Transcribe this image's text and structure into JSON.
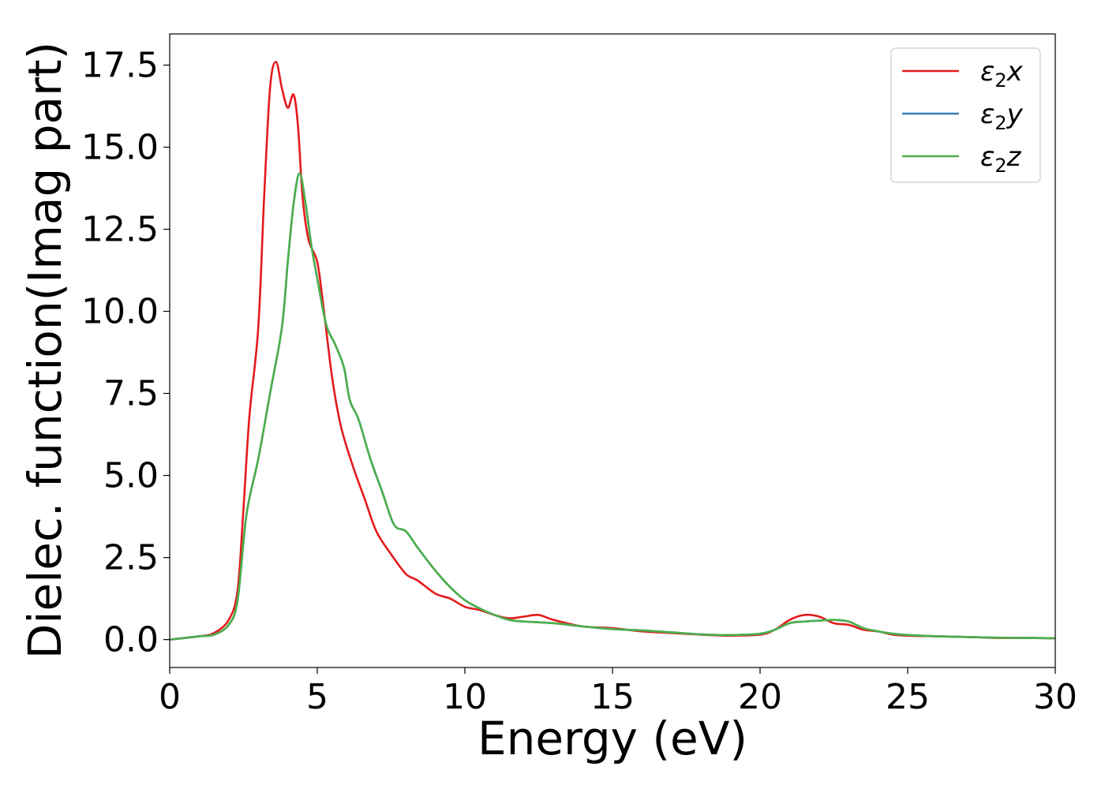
{
  "chart_data": {
    "type": "line",
    "title": "",
    "xlabel": "Energy (eV)",
    "ylabel": "Dielec. function(Imag part)",
    "xlim": [
      0,
      30
    ],
    "ylim": [
      -0.85,
      18.45
    ],
    "xticks": [
      0,
      5,
      10,
      15,
      20,
      25,
      30
    ],
    "xtick_labels": [
      "0",
      "5",
      "10",
      "15",
      "20",
      "25",
      "30"
    ],
    "yticks": [
      0,
      2.5,
      5,
      7.5,
      10,
      12.5,
      15,
      17.5
    ],
    "ytick_labels": [
      "0.0",
      "2.5",
      "5.0",
      "7.5",
      "10.0",
      "12.5",
      "15.0",
      "17.5"
    ],
    "grid": false,
    "legend_position": "top-right",
    "series": [
      {
        "name": "ε₂x",
        "legend_label": {
          "base": "ε",
          "sub": "2",
          "tail": "x"
        },
        "color": "#e41a1c",
        "points": [
          [
            0,
            0
          ],
          [
            1,
            0.1
          ],
          [
            1.5,
            0.2
          ],
          [
            2,
            0.6
          ],
          [
            2.3,
            1.5
          ],
          [
            2.5,
            4.0
          ],
          [
            2.7,
            6.8
          ],
          [
            3.0,
            9.5
          ],
          [
            3.2,
            13.5
          ],
          [
            3.4,
            16.8
          ],
          [
            3.6,
            17.6
          ],
          [
            3.8,
            16.8
          ],
          [
            4.0,
            16.2
          ],
          [
            4.2,
            16.6
          ],
          [
            4.35,
            15.6
          ],
          [
            4.5,
            13.5
          ],
          [
            4.7,
            12.2
          ],
          [
            5.0,
            11.5
          ],
          [
            5.2,
            10.2
          ],
          [
            5.5,
            8.0
          ],
          [
            5.8,
            6.5
          ],
          [
            6.2,
            5.3
          ],
          [
            6.6,
            4.3
          ],
          [
            7.0,
            3.3
          ],
          [
            7.5,
            2.6
          ],
          [
            8.0,
            2.0
          ],
          [
            8.4,
            1.8
          ],
          [
            9.0,
            1.4
          ],
          [
            9.5,
            1.25
          ],
          [
            10.0,
            1.0
          ],
          [
            10.5,
            0.9
          ],
          [
            11.0,
            0.75
          ],
          [
            11.5,
            0.65
          ],
          [
            12.0,
            0.7
          ],
          [
            12.5,
            0.75
          ],
          [
            13.0,
            0.6
          ],
          [
            14.0,
            0.4
          ],
          [
            15.0,
            0.35
          ],
          [
            16.0,
            0.25
          ],
          [
            17.0,
            0.2
          ],
          [
            18.0,
            0.15
          ],
          [
            19.0,
            0.12
          ],
          [
            20.0,
            0.15
          ],
          [
            20.5,
            0.3
          ],
          [
            21.0,
            0.6
          ],
          [
            21.5,
            0.75
          ],
          [
            22.0,
            0.7
          ],
          [
            22.5,
            0.5
          ],
          [
            23.0,
            0.45
          ],
          [
            23.5,
            0.3
          ],
          [
            24.0,
            0.25
          ],
          [
            24.5,
            0.15
          ],
          [
            25.0,
            0.12
          ],
          [
            26.0,
            0.1
          ],
          [
            27.0,
            0.08
          ],
          [
            28.0,
            0.05
          ],
          [
            29.0,
            0.05
          ],
          [
            30.0,
            0.04
          ]
        ]
      },
      {
        "name": "ε₂y",
        "legend_label": {
          "base": "ε",
          "sub": "2",
          "tail": "y"
        },
        "color": "#377eb8",
        "points": [
          [
            0,
            0
          ],
          [
            1,
            0.1
          ],
          [
            1.5,
            0.15
          ],
          [
            2,
            0.45
          ],
          [
            2.3,
            1.2
          ],
          [
            2.6,
            3.8
          ],
          [
            3.0,
            5.5
          ],
          [
            3.4,
            7.5
          ],
          [
            3.8,
            9.5
          ],
          [
            4.0,
            11.5
          ],
          [
            4.2,
            13.3
          ],
          [
            4.4,
            14.2
          ],
          [
            4.6,
            13.3
          ],
          [
            4.8,
            12.0
          ],
          [
            5.0,
            11.0
          ],
          [
            5.3,
            9.6
          ],
          [
            5.6,
            9.0
          ],
          [
            5.9,
            8.3
          ],
          [
            6.1,
            7.3
          ],
          [
            6.4,
            6.7
          ],
          [
            6.8,
            5.5
          ],
          [
            7.2,
            4.5
          ],
          [
            7.6,
            3.5
          ],
          [
            8.0,
            3.3
          ],
          [
            8.4,
            2.8
          ],
          [
            9.0,
            2.1
          ],
          [
            9.5,
            1.6
          ],
          [
            10.0,
            1.2
          ],
          [
            10.5,
            0.95
          ],
          [
            11.0,
            0.75
          ],
          [
            11.5,
            0.6
          ],
          [
            12.0,
            0.55
          ],
          [
            13.0,
            0.5
          ],
          [
            14.0,
            0.4
          ],
          [
            15.0,
            0.32
          ],
          [
            16.0,
            0.28
          ],
          [
            17.0,
            0.22
          ],
          [
            18.0,
            0.16
          ],
          [
            19.0,
            0.14
          ],
          [
            20.0,
            0.18
          ],
          [
            20.5,
            0.3
          ],
          [
            21.0,
            0.5
          ],
          [
            21.5,
            0.55
          ],
          [
            22.0,
            0.58
          ],
          [
            22.5,
            0.6
          ],
          [
            23.0,
            0.55
          ],
          [
            23.5,
            0.35
          ],
          [
            24.0,
            0.25
          ],
          [
            24.5,
            0.18
          ],
          [
            25.0,
            0.14
          ],
          [
            26.0,
            0.1
          ],
          [
            27.0,
            0.08
          ],
          [
            28.0,
            0.06
          ],
          [
            29.0,
            0.05
          ],
          [
            30.0,
            0.04
          ]
        ]
      },
      {
        "name": "ε₂z",
        "legend_label": {
          "base": "ε",
          "sub": "2",
          "tail": "z"
        },
        "color": "#4daf4a",
        "points": [
          [
            0,
            0
          ],
          [
            1,
            0.1
          ],
          [
            1.5,
            0.15
          ],
          [
            2,
            0.45
          ],
          [
            2.3,
            1.2
          ],
          [
            2.6,
            3.8
          ],
          [
            3.0,
            5.5
          ],
          [
            3.4,
            7.5
          ],
          [
            3.8,
            9.5
          ],
          [
            4.0,
            11.5
          ],
          [
            4.2,
            13.3
          ],
          [
            4.4,
            14.2
          ],
          [
            4.6,
            13.3
          ],
          [
            4.8,
            12.0
          ],
          [
            5.0,
            11.0
          ],
          [
            5.3,
            9.6
          ],
          [
            5.6,
            9.0
          ],
          [
            5.9,
            8.3
          ],
          [
            6.1,
            7.3
          ],
          [
            6.4,
            6.7
          ],
          [
            6.8,
            5.5
          ],
          [
            7.2,
            4.5
          ],
          [
            7.6,
            3.5
          ],
          [
            8.0,
            3.3
          ],
          [
            8.4,
            2.8
          ],
          [
            9.0,
            2.1
          ],
          [
            9.5,
            1.6
          ],
          [
            10.0,
            1.2
          ],
          [
            10.5,
            0.95
          ],
          [
            11.0,
            0.75
          ],
          [
            11.5,
            0.6
          ],
          [
            12.0,
            0.55
          ],
          [
            13.0,
            0.5
          ],
          [
            14.0,
            0.4
          ],
          [
            15.0,
            0.32
          ],
          [
            16.0,
            0.28
          ],
          [
            17.0,
            0.22
          ],
          [
            18.0,
            0.16
          ],
          [
            19.0,
            0.14
          ],
          [
            20.0,
            0.18
          ],
          [
            20.5,
            0.3
          ],
          [
            21.0,
            0.5
          ],
          [
            21.5,
            0.55
          ],
          [
            22.0,
            0.58
          ],
          [
            22.5,
            0.6
          ],
          [
            23.0,
            0.55
          ],
          [
            23.5,
            0.35
          ],
          [
            24.0,
            0.25
          ],
          [
            24.5,
            0.18
          ],
          [
            25.0,
            0.14
          ],
          [
            26.0,
            0.1
          ],
          [
            27.0,
            0.08
          ],
          [
            28.0,
            0.06
          ],
          [
            29.0,
            0.05
          ],
          [
            30.0,
            0.04
          ]
        ]
      }
    ]
  }
}
